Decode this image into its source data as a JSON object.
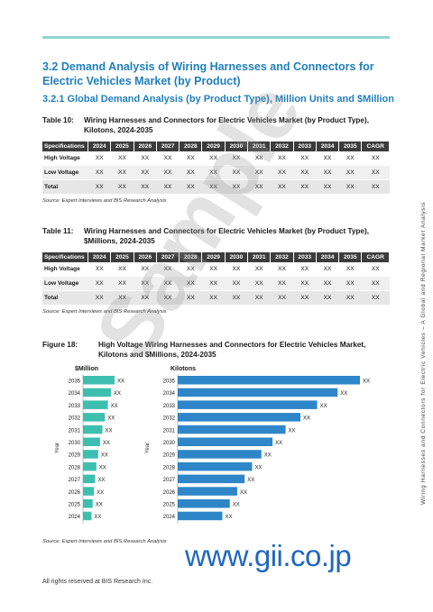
{
  "section": {
    "title": "3.2  Demand Analysis of Wiring Harnesses and Connectors for Electric Vehicles Market (by Product)",
    "subtitle": "3.2.1  Global Demand Analysis (by Product Type), Million Units and $Million"
  },
  "table10": {
    "number": "Table 10:",
    "caption": "Wiring Harnesses and Connectors for Electric Vehicles Market (by Product Type), Kilotons, 2024-2035",
    "headers": [
      "Specifications",
      "2024",
      "2025",
      "2026",
      "2027",
      "2028",
      "2029",
      "2030",
      "2031",
      "2032",
      "2033",
      "2034",
      "2035",
      "CAGR"
    ],
    "rows": [
      [
        "High Voltage",
        "XX",
        "XX",
        "XX",
        "XX",
        "XX",
        "XX",
        "XX",
        "XX",
        "XX",
        "XX",
        "XX",
        "XX",
        "XX"
      ],
      [
        "Low Voltage",
        "XX",
        "XX",
        "XX",
        "XX",
        "XX",
        "XX",
        "XX",
        "XX",
        "XX",
        "XX",
        "XX",
        "XX",
        "XX"
      ],
      [
        "Total",
        "XX",
        "XX",
        "XX",
        "XX",
        "XX",
        "XX",
        "XX",
        "XX",
        "XX",
        "XX",
        "XX",
        "XX",
        "XX"
      ]
    ],
    "source": "Source: Expert Interviews and BIS Research Analysis"
  },
  "table11": {
    "number": "Table 11:",
    "caption": "Wiring Harnesses and Connectors for Electric Vehicles Market (by Product Type), $Millions, 2024-2035",
    "headers": [
      "Specifications",
      "2024",
      "2025",
      "2026",
      "2027",
      "2028",
      "2029",
      "2030",
      "2031",
      "2032",
      "2033",
      "2034",
      "2035",
      "CAGR"
    ],
    "rows": [
      [
        "High Voltage",
        "XX",
        "XX",
        "XX",
        "XX",
        "XX",
        "XX",
        "XX",
        "XX",
        "XX",
        "XX",
        "XX",
        "XX",
        "XX"
      ],
      [
        "Low Voltage",
        "XX",
        "XX",
        "XX",
        "XX",
        "XX",
        "XX",
        "XX",
        "XX",
        "XX",
        "XX",
        "XX",
        "XX",
        "XX"
      ],
      [
        "Total",
        "XX",
        "XX",
        "XX",
        "XX",
        "XX",
        "XX",
        "XX",
        "XX",
        "XX",
        "XX",
        "XX",
        "XX",
        "XX"
      ]
    ],
    "source": "Source: Expert Interviews and BIS Research Analysis"
  },
  "figure18": {
    "number": "Figure 18:",
    "caption": "High Voltage Wiring Harnesses and Connectors for Electric Vehicles Market, Kilotons and $Millions, 2024-2035",
    "source": "Source: Expert Interviews and BIS Research Analysis"
  },
  "chart_data": [
    {
      "type": "bar",
      "orientation": "horizontal",
      "title": "$Million",
      "ylabel": "Year",
      "color": "#3dbfb0",
      "categories": [
        "2035",
        "2034",
        "2033",
        "2032",
        "2031",
        "2030",
        "2029",
        "2028",
        "2027",
        "2026",
        "2025",
        "2024"
      ],
      "values": [
        26,
        23,
        20.5,
        18,
        16,
        14,
        12.5,
        11,
        10,
        9,
        8,
        7
      ],
      "data_labels": [
        "XX",
        "XX",
        "XX",
        "XX",
        "XX",
        "XX",
        "XX",
        "XX",
        "XX",
        "XX",
        "XX",
        "XX"
      ]
    },
    {
      "type": "bar",
      "orientation": "horizontal",
      "title": "Kilotons",
      "ylabel": "Year",
      "color": "#2e86c8",
      "categories": [
        "2035",
        "2034",
        "2033",
        "2032",
        "2031",
        "2030",
        "2029",
        "2028",
        "2027",
        "2026",
        "2025",
        "2024"
      ],
      "values": [
        98,
        86,
        75,
        66,
        58,
        51,
        45,
        40,
        36,
        32,
        28,
        24
      ],
      "data_labels": [
        "XX",
        "XX",
        "XX",
        "XX",
        "XX",
        "XX",
        "XX",
        "XX",
        "XX",
        "XX",
        "XX",
        "XX"
      ]
    }
  ],
  "footer": "All rights reserved at BIS Research Inc.",
  "side_text": "Wiring Harnesses and Connectors for Electric Vehicles – A Global and Regional Market Analysis",
  "watermark": "Sample",
  "gii_logo": "www.gii.co.jp"
}
